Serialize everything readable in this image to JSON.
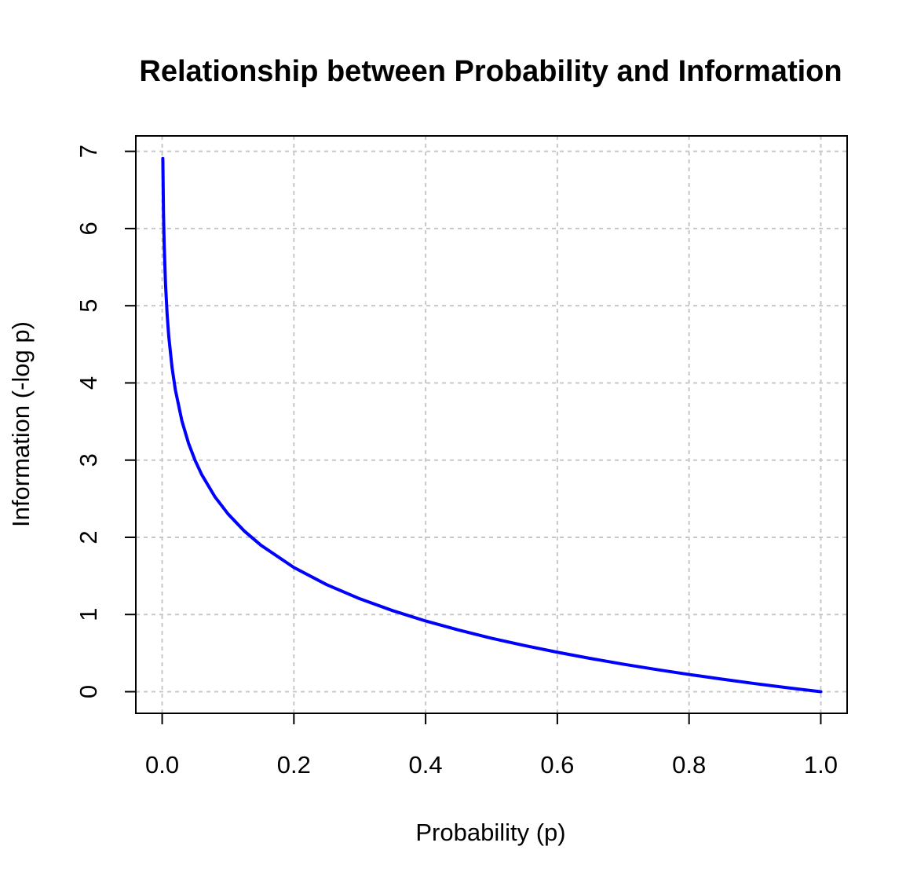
{
  "chart_data": {
    "type": "line",
    "title": "Relationship between Probability and Information",
    "xlabel": "Probability (p)",
    "ylabel": "Information (-log p)",
    "xlim": [
      -0.04,
      1.04
    ],
    "ylim": [
      -0.28,
      7.2
    ],
    "x_ticks": [
      0.0,
      0.2,
      0.4,
      0.6,
      0.8,
      1.0
    ],
    "x_tick_labels": [
      "0.0",
      "0.2",
      "0.4",
      "0.6",
      "0.8",
      "1.0"
    ],
    "y_ticks": [
      0,
      1,
      2,
      3,
      4,
      5,
      6,
      7
    ],
    "y_tick_labels": [
      "0",
      "1",
      "2",
      "3",
      "4",
      "5",
      "6",
      "7"
    ],
    "grid": true,
    "series": [
      {
        "color": "#0000ff",
        "x": [
          0.001,
          0.002,
          0.003,
          0.005,
          0.0075,
          0.01,
          0.015,
          0.02,
          0.03,
          0.04,
          0.05,
          0.06,
          0.08,
          0.1,
          0.125,
          0.15,
          0.2,
          0.25,
          0.3,
          0.35,
          0.4,
          0.45,
          0.5,
          0.55,
          0.6,
          0.65,
          0.7,
          0.75,
          0.8,
          0.85,
          0.9,
          0.95,
          1.0
        ],
        "y": [
          6.908,
          6.215,
          5.809,
          5.298,
          4.893,
          4.605,
          4.2,
          3.912,
          3.507,
          3.219,
          2.996,
          2.813,
          2.526,
          2.303,
          2.079,
          1.897,
          1.609,
          1.386,
          1.204,
          1.05,
          0.916,
          0.799,
          0.693,
          0.598,
          0.511,
          0.431,
          0.357,
          0.288,
          0.223,
          0.163,
          0.105,
          0.051,
          0.0
        ]
      }
    ]
  },
  "colors": {
    "line": "#0000ff",
    "grid": "#c8c8c8",
    "axis": "#000000",
    "background": "#ffffff"
  }
}
